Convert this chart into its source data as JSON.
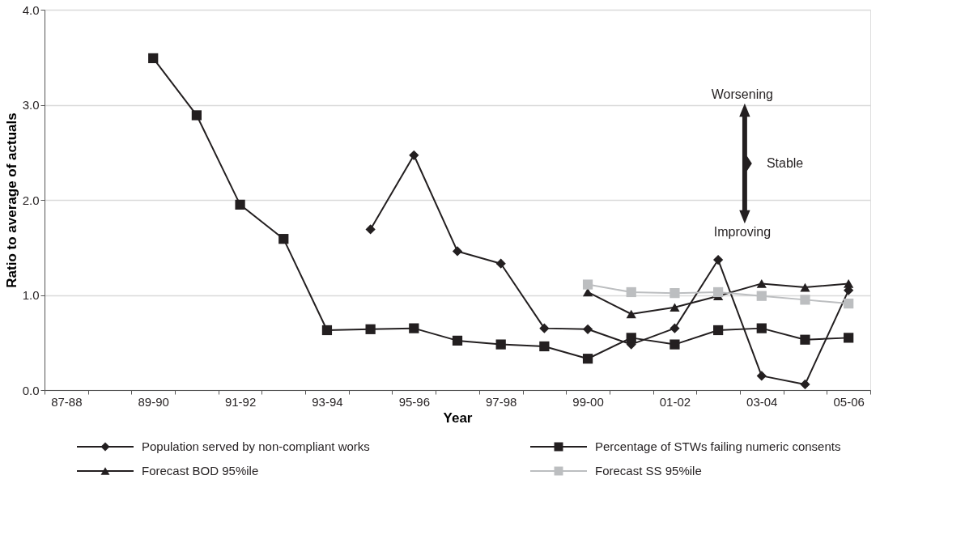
{
  "chart_data": {
    "type": "line",
    "xlabel": "Year",
    "ylabel": "Ratio to average of actuals",
    "categories": [
      "87-88",
      null,
      "89-90",
      null,
      "91-92",
      null,
      "93-94",
      null,
      "95-96",
      null,
      "97-98",
      null,
      "99-00",
      null,
      "01-02",
      null,
      "03-04",
      null,
      "05-06"
    ],
    "series": [
      {
        "name": "Population served by non-compliant works",
        "color": "#231f20",
        "marker": "diamond",
        "values": [
          null,
          null,
          null,
          null,
          null,
          null,
          null,
          1.69,
          2.47,
          1.46,
          1.33,
          0.65,
          0.64,
          0.48,
          0.65,
          1.37,
          0.15,
          0.06,
          1.05
        ]
      },
      {
        "name": "Percentage of STWs failing numeric consents",
        "color": "#231f20",
        "marker": "square",
        "values": [
          null,
          null,
          3.49,
          2.89,
          1.95,
          1.59,
          0.63,
          0.64,
          0.65,
          0.52,
          0.48,
          0.46,
          0.33,
          0.55,
          0.48,
          0.63,
          0.65,
          0.53,
          0.55
        ]
      },
      {
        "name": "Forecast BOD 95%ile",
        "color": "#231f20",
        "marker": "triangle",
        "values": [
          null,
          null,
          null,
          null,
          null,
          null,
          null,
          null,
          null,
          null,
          null,
          null,
          1.03,
          0.8,
          0.87,
          0.99,
          1.12,
          1.08,
          1.12
        ]
      },
      {
        "name": "Forecast SS 95%ile",
        "color": "#bcbec0",
        "marker": "square",
        "values": [
          null,
          null,
          null,
          null,
          null,
          null,
          null,
          null,
          null,
          null,
          null,
          null,
          1.11,
          1.03,
          1.02,
          1.03,
          0.99,
          0.95,
          0.91
        ]
      }
    ],
    "ylim": [
      0,
      4
    ],
    "yticks": [
      {
        "value": 0,
        "label": "0.0"
      },
      {
        "value": 1,
        "label": "1.0"
      },
      {
        "value": 2,
        "label": "2.0"
      },
      {
        "value": 3,
        "label": "3.0"
      },
      {
        "value": 4,
        "label": "4.0"
      }
    ],
    "grid": "y",
    "legend": "bottom",
    "annotations": [
      "Worsening",
      "Stable",
      "Improving"
    ]
  }
}
